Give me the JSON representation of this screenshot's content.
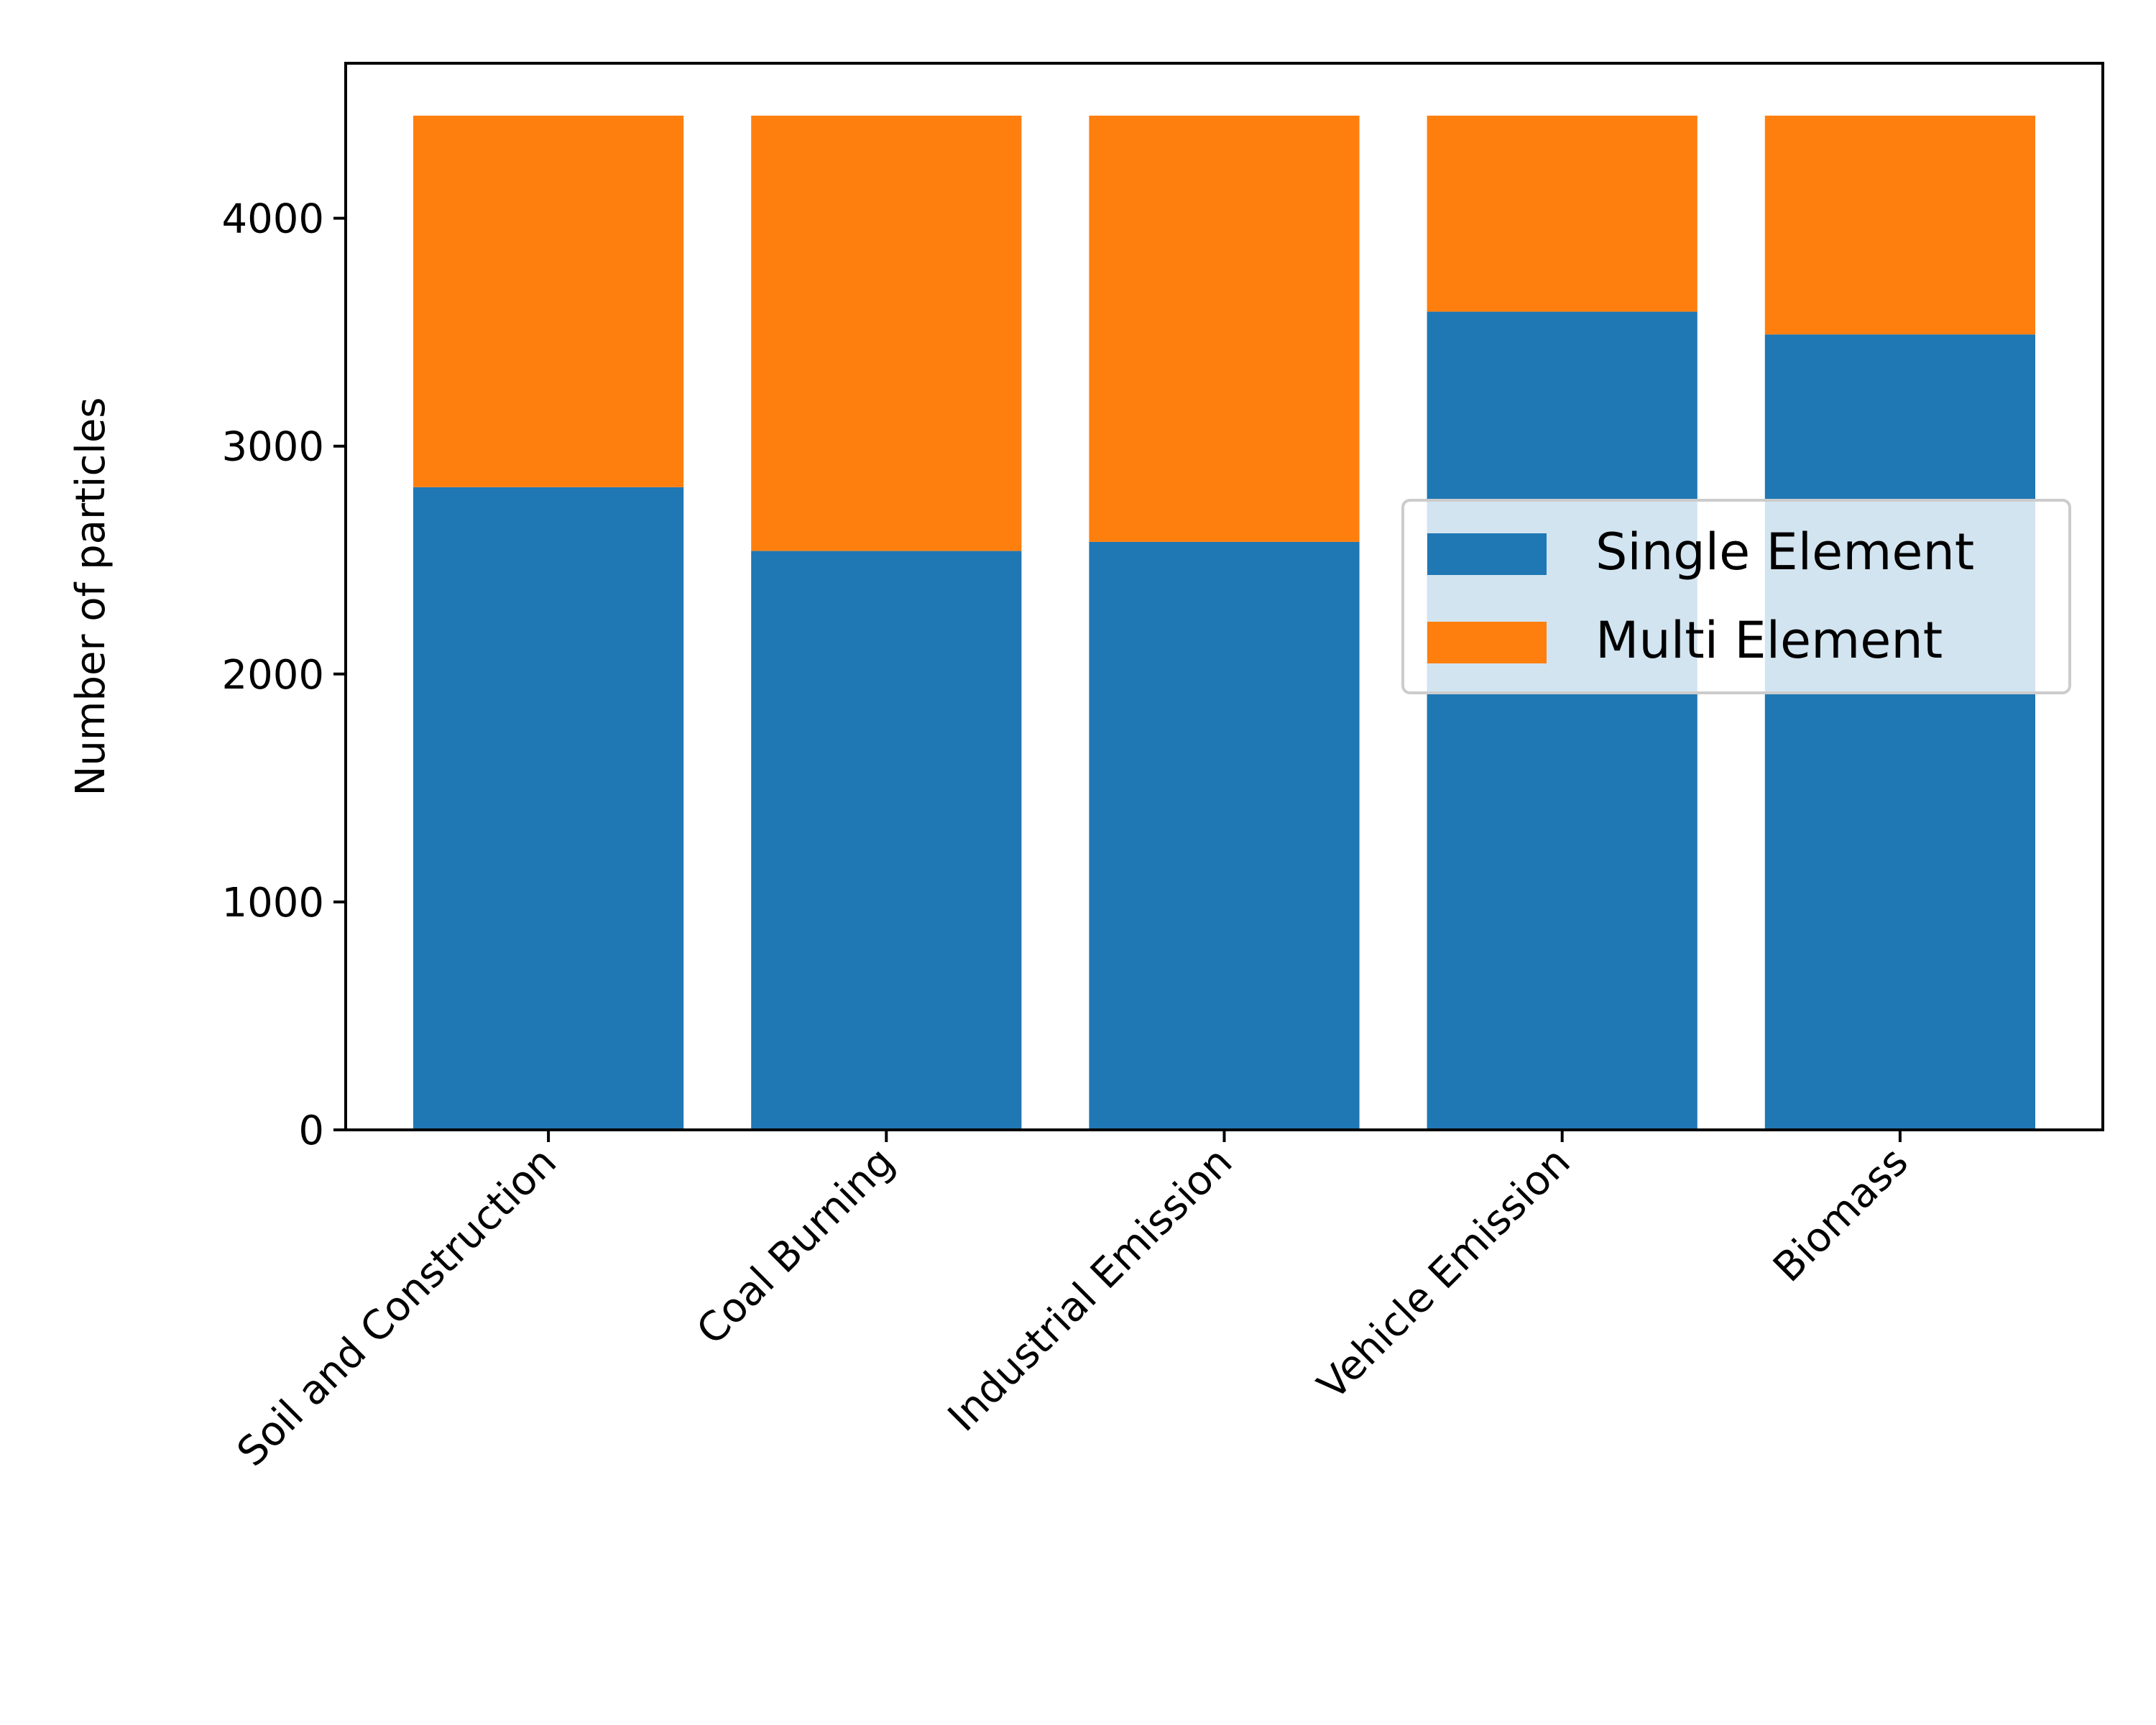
{
  "chart_data": {
    "type": "bar",
    "stacked": true,
    "title": "",
    "xlabel": "",
    "ylabel": "Number of particles",
    "categories": [
      "Soil and Construction",
      "Coal Burning",
      "Industrial Emission",
      "Vehicle Emission",
      "Biomass"
    ],
    "series": [
      {
        "name": "Single Element",
        "color": "#1f77b4",
        "values": [
          2820,
          2540,
          2580,
          3590,
          3490
        ]
      },
      {
        "name": "Multi Element",
        "color": "#ff7f0e",
        "values": [
          1630,
          1910,
          1870,
          860,
          960
        ]
      }
    ],
    "ylim": [
      0,
      4680
    ],
    "yticks": [
      0,
      1000,
      2000,
      3000,
      4000
    ],
    "grid": false,
    "legend": {
      "position": "center-right"
    },
    "xtick_rotation": -45
  }
}
